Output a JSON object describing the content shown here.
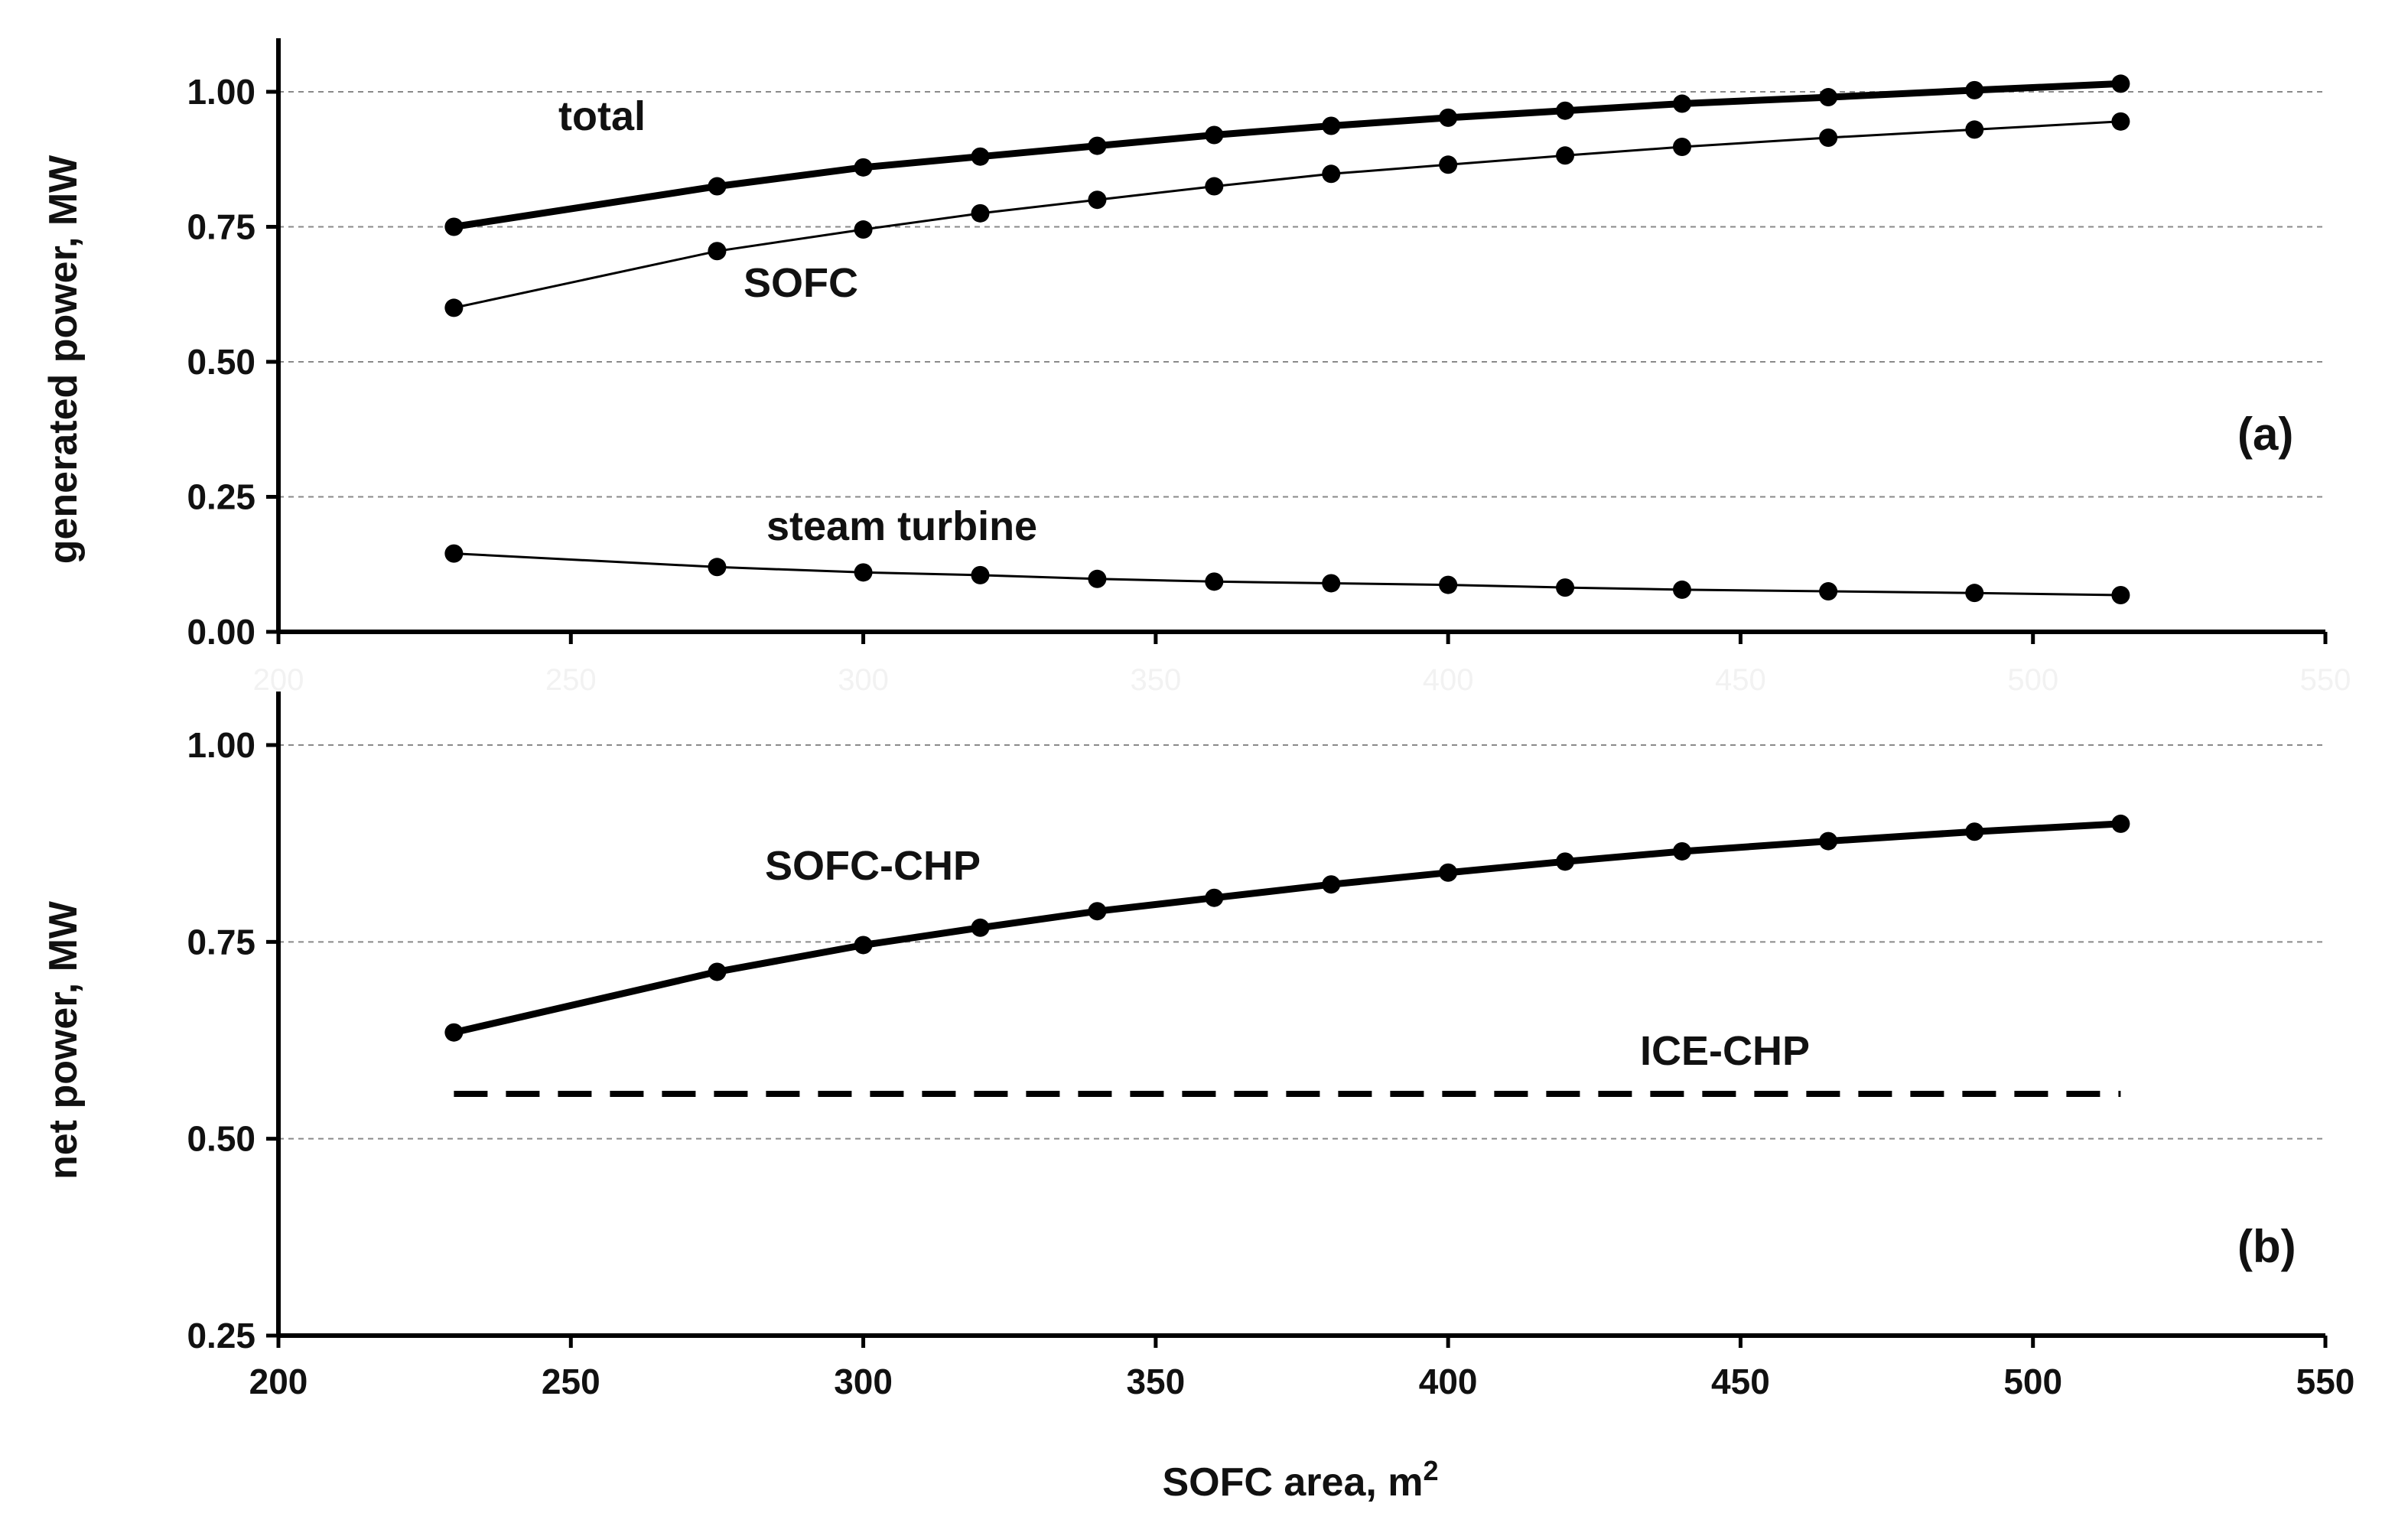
{
  "chart_data": [
    {
      "type": "line",
      "panel_tag": "(a)",
      "ylabel": "generated power, MW",
      "xlabel": "",
      "xlim": [
        200,
        550
      ],
      "ylim": [
        0.0,
        1.0
      ],
      "yticks": [
        "0.00",
        "0.25",
        "0.50",
        "0.75",
        "1.00"
      ],
      "xticks": [
        "200",
        "250",
        "300",
        "350",
        "400",
        "450",
        "500",
        "550"
      ],
      "x_tick_labels_faint": true,
      "grid": "horizontal dashed",
      "series": [
        {
          "name": "total",
          "style": "thick",
          "markers": true,
          "x": [
            230,
            275,
            300,
            320,
            340,
            360,
            380,
            400,
            420,
            440,
            465,
            490,
            515
          ],
          "y": [
            0.75,
            0.825,
            0.86,
            0.88,
            0.9,
            0.92,
            0.937,
            0.952,
            0.965,
            0.978,
            0.99,
            1.003,
            1.015
          ]
        },
        {
          "name": "SOFC",
          "style": "thin",
          "markers": true,
          "x": [
            230,
            275,
            300,
            320,
            340,
            360,
            380,
            400,
            420,
            440,
            465,
            490,
            515
          ],
          "y": [
            0.6,
            0.705,
            0.745,
            0.775,
            0.8,
            0.825,
            0.848,
            0.865,
            0.882,
            0.898,
            0.915,
            0.93,
            0.945
          ]
        },
        {
          "name": "steam turbine",
          "style": "thin",
          "markers": true,
          "x": [
            230,
            275,
            300,
            320,
            340,
            360,
            380,
            400,
            420,
            440,
            465,
            490,
            515
          ],
          "y": [
            0.145,
            0.12,
            0.11,
            0.105,
            0.098,
            0.093,
            0.09,
            0.087,
            0.082,
            0.078,
            0.075,
            0.072,
            0.068
          ]
        }
      ]
    },
    {
      "type": "line",
      "panel_tag": "(b)",
      "ylabel": "net power, MW",
      "xlabel": "SOFC area, m",
      "xlabel_superscript": "2",
      "xlim": [
        200,
        550
      ],
      "ylim": [
        0.25,
        1.0
      ],
      "yticks": [
        "0.25",
        "0.50",
        "0.75",
        "1.00"
      ],
      "xticks": [
        "200",
        "250",
        "300",
        "350",
        "400",
        "450",
        "500",
        "550"
      ],
      "grid": "horizontal dashed",
      "series": [
        {
          "name": "SOFC-CHP",
          "style": "thick",
          "markers": true,
          "x": [
            230,
            275,
            300,
            320,
            340,
            360,
            380,
            400,
            420,
            440,
            465,
            490,
            515
          ],
          "y": [
            0.635,
            0.712,
            0.746,
            0.768,
            0.789,
            0.806,
            0.823,
            0.838,
            0.852,
            0.865,
            0.878,
            0.89,
            0.9
          ]
        },
        {
          "name": "ICE-CHP",
          "style": "dashed",
          "markers": false,
          "x": [
            230,
            515
          ],
          "y": [
            0.557,
            0.557
          ]
        }
      ]
    }
  ]
}
